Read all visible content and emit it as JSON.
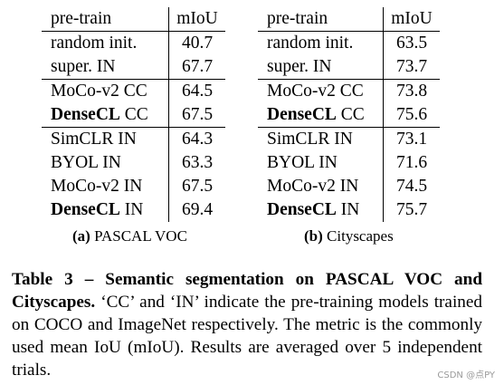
{
  "table_a": {
    "header": {
      "pretrain": "pre-train",
      "metric": "mIoU"
    },
    "groups": [
      [
        {
          "method": "random init.",
          "method_bold": "",
          "method_suffix": "",
          "miou": "40.7"
        },
        {
          "method": "super. IN",
          "method_bold": "",
          "method_suffix": "",
          "miou": "67.7"
        }
      ],
      [
        {
          "method": "MoCo-v2 CC",
          "method_bold": "",
          "method_suffix": "",
          "miou": "64.5"
        },
        {
          "method": "",
          "method_bold": "DenseCL",
          "method_suffix": " CC",
          "miou": "67.5"
        }
      ],
      [
        {
          "method": "SimCLR IN",
          "method_bold": "",
          "method_suffix": "",
          "miou": "64.3"
        },
        {
          "method": "BYOL IN",
          "method_bold": "",
          "method_suffix": "",
          "miou": "63.3"
        },
        {
          "method": "MoCo-v2 IN",
          "method_bold": "",
          "method_suffix": "",
          "miou": "67.5"
        },
        {
          "method": "",
          "method_bold": "DenseCL",
          "method_suffix": " IN",
          "miou": "69.4"
        }
      ]
    ],
    "subcaption_label": "(a)",
    "subcaption_text": " PASCAL VOC"
  },
  "table_b": {
    "header": {
      "pretrain": "pre-train",
      "metric": "mIoU"
    },
    "groups": [
      [
        {
          "method": "random init.",
          "method_bold": "",
          "method_suffix": "",
          "miou": "63.5"
        },
        {
          "method": "super. IN",
          "method_bold": "",
          "method_suffix": "",
          "miou": "73.7"
        }
      ],
      [
        {
          "method": "MoCo-v2 CC",
          "method_bold": "",
          "method_suffix": "",
          "miou": "73.8"
        },
        {
          "method": "",
          "method_bold": "DenseCL",
          "method_suffix": " CC",
          "miou": "75.6"
        }
      ],
      [
        {
          "method": "SimCLR IN",
          "method_bold": "",
          "method_suffix": "",
          "miou": "73.1"
        },
        {
          "method": "BYOL IN",
          "method_bold": "",
          "method_suffix": "",
          "miou": "71.6"
        },
        {
          "method": "MoCo-v2 IN",
          "method_bold": "",
          "method_suffix": "",
          "miou": "74.5"
        },
        {
          "method": "",
          "method_bold": "DenseCL",
          "method_suffix": " IN",
          "miou": "75.7"
        }
      ]
    ],
    "subcaption_label": "(b)",
    "subcaption_text": " Cityscapes"
  },
  "caption": {
    "title": "Table 3 – Semantic segmentation on PASCAL VOC and Cityscapes.",
    "body": " ‘CC’ and ‘IN’ indicate the pre-training models trained on COCO and ImageNet respectively. The metric is the commonly used mean IoU (mIoU). Results are averaged over 5 independent trials."
  },
  "watermark": "CSDN @点PY"
}
